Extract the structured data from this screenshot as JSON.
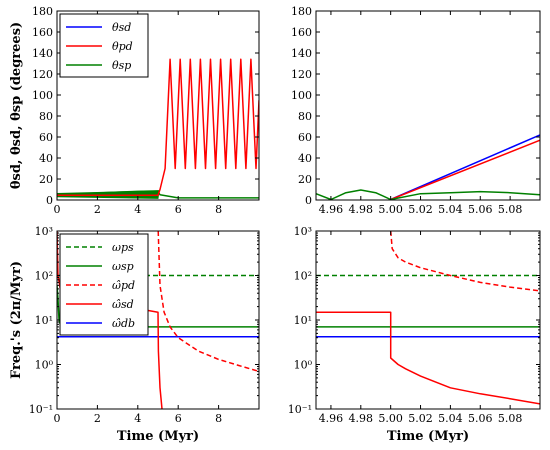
{
  "colors": {
    "blue": "#0000ff",
    "red": "#ff0000",
    "green": "#008000"
  },
  "chart_data": [
    {
      "id": "top-left",
      "type": "line",
      "ylabel": "θsd, θsd, θsp (degrees)",
      "xlim": [
        0,
        10
      ],
      "ylim": [
        0,
        180
      ],
      "xticks": [
        0,
        2,
        4,
        6,
        8
      ],
      "xtick_labels": [
        "0",
        "2",
        "4",
        "6",
        "8"
      ],
      "yticks": [
        0,
        20,
        40,
        60,
        80,
        100,
        120,
        140,
        160,
        180
      ],
      "ytick_labels": [
        "0",
        "20",
        "40",
        "60",
        "80",
        "100",
        "120",
        "140",
        "160",
        "180"
      ],
      "legend": {
        "placement": "top-left",
        "entries": [
          {
            "label": "θsd",
            "color": "blue",
            "dash": "solid"
          },
          {
            "label": "θpd",
            "color": "red",
            "dash": "solid"
          },
          {
            "label": "θsp",
            "color": "green",
            "dash": "solid"
          }
        ]
      },
      "series": [
        {
          "name": "θsp",
          "color": "green",
          "dash": "solid",
          "points": [
            [
              0,
              6
            ],
            [
              1,
              6.5
            ],
            [
              2,
              7
            ],
            [
              3,
              7.5
            ],
            [
              4,
              8
            ],
            [
              5,
              8.5
            ],
            [
              5.1,
              5
            ],
            [
              6,
              2
            ],
            [
              8,
              2
            ],
            [
              10,
              2
            ]
          ]
        },
        {
          "name": "θsp band",
          "color": "green",
          "dash": "solid",
          "fill": true,
          "points": [
            [
              0,
              3
            ],
            [
              5,
              1.5
            ],
            [
              5.05,
              9
            ],
            [
              4,
              8.5
            ],
            [
              2,
              7
            ],
            [
              0,
              5.5
            ]
          ]
        },
        {
          "name": "θpd",
          "color": "red",
          "dash": "solid",
          "points": [
            [
              0,
              4.5
            ],
            [
              5,
              4.5
            ],
            [
              5.1,
              10
            ],
            [
              5.35,
              30
            ],
            [
              5.6,
              134
            ],
            [
              5.85,
              30
            ],
            [
              6.1,
              134
            ],
            [
              6.35,
              30
            ],
            [
              6.6,
              134
            ],
            [
              6.85,
              30
            ],
            [
              7.1,
              134
            ],
            [
              7.35,
              30
            ],
            [
              7.6,
              134
            ],
            [
              7.85,
              30
            ],
            [
              8.1,
              134
            ],
            [
              8.35,
              30
            ],
            [
              8.6,
              134
            ],
            [
              8.85,
              30
            ],
            [
              9.1,
              134
            ],
            [
              9.35,
              30
            ],
            [
              9.6,
              134
            ],
            [
              9.85,
              30
            ],
            [
              10,
              95
            ]
          ]
        }
      ]
    },
    {
      "id": "top-right",
      "type": "line",
      "xlim": [
        4.95,
        5.1
      ],
      "ylim": [
        0,
        180
      ],
      "yticks": [
        0,
        20,
        40,
        60,
        80,
        100,
        120,
        140,
        160,
        180
      ],
      "ytick_labels": [
        "0",
        "20",
        "40",
        "60",
        "80",
        "100",
        "120",
        "140",
        "160",
        "180"
      ],
      "xticks": [
        4.96,
        4.98,
        5.0,
        5.02,
        5.04,
        5.06,
        5.08
      ],
      "xtick_labels": [
        "4.96",
        "4.98",
        "5.00",
        "5.02",
        "5.04",
        "5.06",
        "5.08"
      ],
      "series": [
        {
          "name": "θsd",
          "color": "blue",
          "dash": "solid",
          "points": [
            [
              5.0,
              0.5
            ],
            [
              5.1,
              62
            ]
          ]
        },
        {
          "name": "θpd",
          "color": "red",
          "dash": "solid",
          "points": [
            [
              5.0,
              0.5
            ],
            [
              5.1,
              57
            ]
          ]
        },
        {
          "name": "θsp",
          "color": "green",
          "dash": "solid",
          "points": [
            [
              4.95,
              6
            ],
            [
              4.96,
              0.5
            ],
            [
              4.97,
              7
            ],
            [
              4.98,
              9.5
            ],
            [
              4.99,
              7
            ],
            [
              5.0,
              0.5
            ],
            [
              5.02,
              6
            ],
            [
              5.04,
              7
            ],
            [
              5.06,
              8
            ],
            [
              5.08,
              7
            ],
            [
              5.1,
              5
            ]
          ]
        }
      ]
    },
    {
      "id": "bottom-left",
      "type": "line",
      "xlabel": "Time (Myr)",
      "ylabel": "Freq.'s (2π/Myr)",
      "xlim": [
        0,
        10
      ],
      "ylim": [
        0.1,
        1000
      ],
      "yscale": "log",
      "xticks": [
        0,
        2,
        4,
        6,
        8
      ],
      "xtick_labels": [
        "0",
        "2",
        "4",
        "6",
        "8"
      ],
      "yticks": [
        0.1,
        1,
        10,
        100,
        1000
      ],
      "ytick_labels": [
        "10⁻¹",
        "10⁰",
        "10¹",
        "10²",
        "10³"
      ],
      "legend": {
        "placement": "top-left",
        "entries": [
          {
            "label": "ωps",
            "color": "green",
            "dash": "dashed"
          },
          {
            "label": "ωsp",
            "color": "green",
            "dash": "solid"
          },
          {
            "label": "ω̂pd",
            "color": "red",
            "dash": "dashed"
          },
          {
            "label": "ω̂sd",
            "color": "red",
            "dash": "solid"
          },
          {
            "label": "ω̂db",
            "color": "blue",
            "dash": "solid"
          }
        ]
      },
      "series": [
        {
          "name": "ωps",
          "color": "green",
          "dash": "dashed",
          "points": [
            [
              0,
              100
            ],
            [
              10,
              100
            ]
          ]
        },
        {
          "name": "ωsp",
          "color": "green",
          "dash": "solid",
          "points": [
            [
              0,
              60
            ],
            [
              0.05,
              30
            ],
            [
              0.1,
              10
            ],
            [
              0.2,
              7
            ],
            [
              10,
              7
            ]
          ]
        },
        {
          "name": "ω̂db",
          "color": "blue",
          "dash": "solid",
          "points": [
            [
              0,
              4.2
            ],
            [
              10,
              4.2
            ]
          ]
        },
        {
          "name": "ω̂pd",
          "color": "red",
          "dash": "dashed",
          "points": [
            [
              5.01,
              1000
            ],
            [
              5.1,
              60
            ],
            [
              5.3,
              15
            ],
            [
              5.6,
              7
            ],
            [
              6,
              4
            ],
            [
              7,
              2
            ],
            [
              8,
              1.3
            ],
            [
              9,
              0.95
            ],
            [
              10,
              0.7
            ]
          ]
        },
        {
          "name": "ω̂sd",
          "color": "red",
          "dash": "solid",
          "points": [
            [
              0,
              1000
            ],
            [
              0.05,
              100
            ],
            [
              0.2,
              40
            ],
            [
              0.5,
              30
            ],
            [
              1,
              27
            ],
            [
              2,
              24
            ],
            [
              3,
              21
            ],
            [
              4,
              18
            ],
            [
              5,
              15
            ],
            [
              5.02,
              2
            ],
            [
              5.1,
              0.3
            ],
            [
              5.2,
              0.1
            ]
          ]
        }
      ]
    },
    {
      "id": "bottom-right",
      "type": "line",
      "xlabel": "Time (Myr)",
      "xlim": [
        4.95,
        5.1
      ],
      "ylim": [
        0.1,
        1000
      ],
      "yscale": "log",
      "xticks": [
        4.96,
        4.98,
        5.0,
        5.02,
        5.04,
        5.06,
        5.08
      ],
      "xtick_labels": [
        "4.96",
        "4.98",
        "5.00",
        "5.02",
        "5.04",
        "5.06",
        "5.08"
      ],
      "yticks": [
        0.1,
        1,
        10,
        100,
        1000
      ],
      "ytick_labels": [
        "10⁻¹",
        "10⁰",
        "10¹",
        "10²",
        "10³"
      ],
      "series": [
        {
          "name": "ωps",
          "color": "green",
          "dash": "dashed",
          "points": [
            [
              4.95,
              100
            ],
            [
              5.1,
              100
            ]
          ]
        },
        {
          "name": "ωsp",
          "color": "green",
          "dash": "solid",
          "points": [
            [
              4.95,
              7
            ],
            [
              5.1,
              7
            ]
          ]
        },
        {
          "name": "ω̂db",
          "color": "blue",
          "dash": "solid",
          "points": [
            [
              4.95,
              4.2
            ],
            [
              5.1,
              4.2
            ]
          ]
        },
        {
          "name": "ω̂pd",
          "color": "red",
          "dash": "dashed",
          "points": [
            [
              5.0,
              1000
            ],
            [
              5.001,
              400
            ],
            [
              5.005,
              250
            ],
            [
              5.01,
              200
            ],
            [
              5.02,
              150
            ],
            [
              5.04,
              100
            ],
            [
              5.06,
              70
            ],
            [
              5.08,
              55
            ],
            [
              5.1,
              45
            ]
          ]
        },
        {
          "name": "ω̂sd",
          "color": "red",
          "dash": "solid",
          "points": [
            [
              4.95,
              15
            ],
            [
              5.0,
              15
            ],
            [
              5.0,
              1.4
            ],
            [
              5.005,
              1.0
            ],
            [
              5.01,
              0.8
            ],
            [
              5.02,
              0.55
            ],
            [
              5.04,
              0.3
            ],
            [
              5.06,
              0.22
            ],
            [
              5.08,
              0.17
            ],
            [
              5.1,
              0.13
            ]
          ]
        }
      ]
    }
  ]
}
